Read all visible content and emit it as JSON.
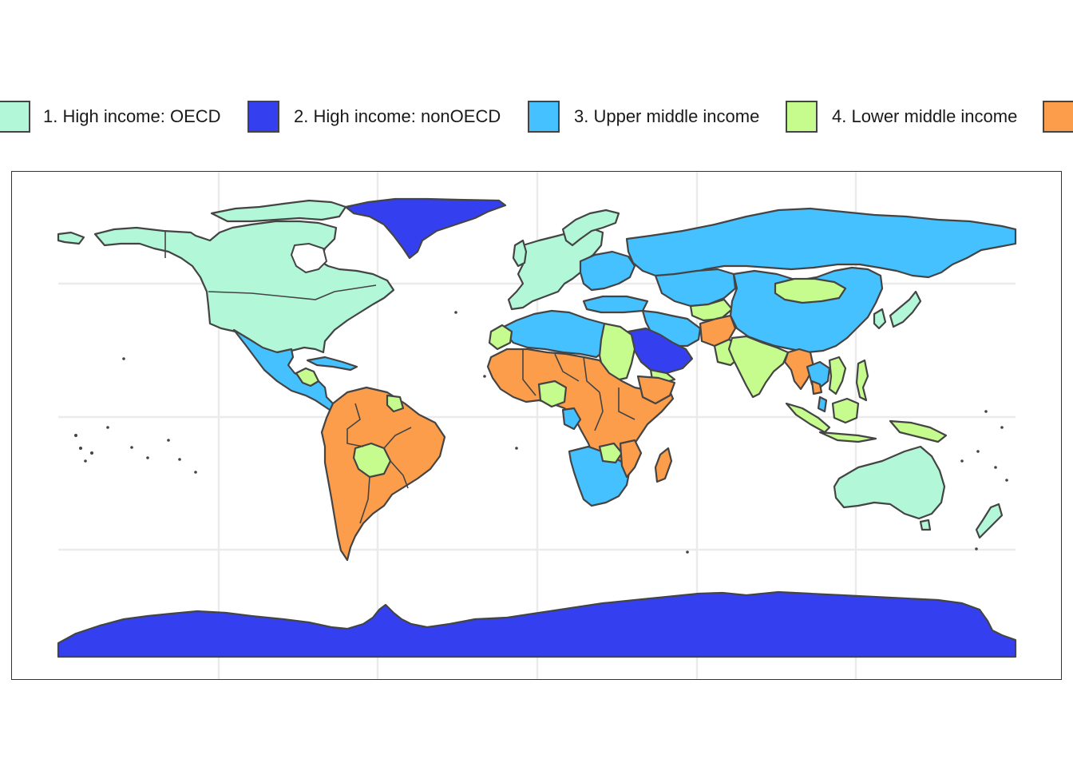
{
  "colors": {
    "high_income_oecd": "#b2f7d8",
    "high_income_nonoecd": "#3440f0",
    "upper_middle_income": "#45c1ff",
    "lower_middle_income": "#c6fc8e",
    "low_income": "#fc9d4c",
    "border": "#444444",
    "gridline": "#ebebeb"
  },
  "legend": {
    "items": [
      {
        "label": "1. High income: OECD",
        "color_key": "high_income_oecd"
      },
      {
        "label": "2. High income: nonOECD",
        "color_key": "high_income_nonoecd"
      },
      {
        "label": "3. Upper middle income",
        "color_key": "upper_middle_income"
      },
      {
        "label": "4. Lower middle income",
        "color_key": "lower_middle_income"
      },
      {
        "label": "",
        "color_key": "low_income"
      }
    ]
  },
  "map": {
    "projection": "equirectangular",
    "grid": true,
    "regions": [
      {
        "name": "Antarctica",
        "class": "high_income_nonoecd"
      },
      {
        "name": "Greenland",
        "class": "high_income_nonoecd"
      },
      {
        "name": "North America (US, Canada)",
        "class": "high_income_oecd"
      },
      {
        "name": "Mexico & Central America",
        "class": "upper_middle_income"
      },
      {
        "name": "South America",
        "class": "upper_middle_income"
      },
      {
        "name": "Bolivia",
        "class": "lower_middle_income"
      },
      {
        "name": "Western Europe",
        "class": "high_income_oecd"
      },
      {
        "name": "Eastern Europe",
        "class": "upper_middle_income"
      },
      {
        "name": "Russia",
        "class": "upper_middle_income"
      },
      {
        "name": "China",
        "class": "upper_middle_income"
      },
      {
        "name": "Mongolia",
        "class": "lower_middle_income"
      },
      {
        "name": "India",
        "class": "lower_middle_income"
      },
      {
        "name": "Afghanistan",
        "class": "low_income"
      },
      {
        "name": "Myanmar",
        "class": "low_income"
      },
      {
        "name": "Saudi Arabia",
        "class": "high_income_nonoecd"
      },
      {
        "name": "North Africa",
        "class": "upper_middle_income"
      },
      {
        "name": "Sudan & Egypt",
        "class": "lower_middle_income"
      },
      {
        "name": "Sub-Saharan Africa",
        "class": "low_income"
      },
      {
        "name": "Southern Africa",
        "class": "upper_middle_income"
      },
      {
        "name": "Madagascar",
        "class": "low_income"
      },
      {
        "name": "Southeast Asia",
        "class": "lower_middle_income"
      },
      {
        "name": "Japan & Korea",
        "class": "high_income_oecd"
      },
      {
        "name": "Australia",
        "class": "high_income_oecd"
      },
      {
        "name": "New Zealand",
        "class": "high_income_oecd"
      }
    ]
  }
}
